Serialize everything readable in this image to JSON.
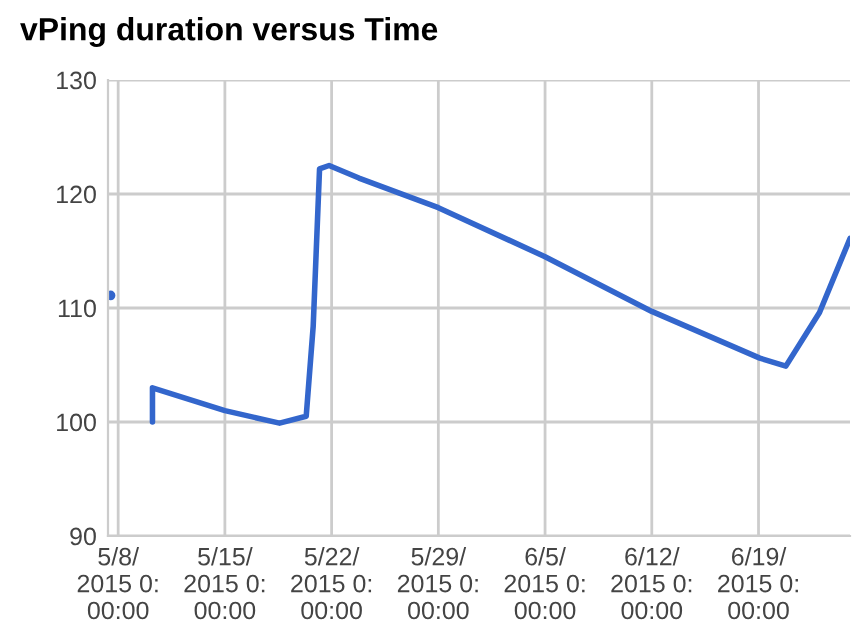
{
  "chart_data": {
    "type": "line",
    "title": "vPing duration versus Time",
    "x": [
      "2015-05-07T12:00",
      null,
      "2015-05-10T06:00",
      "2015-05-10T06:00",
      "2015-05-15",
      "2015-05-18T14:00",
      "2015-05-20T08:00",
      "2015-05-20T19:00",
      "2015-05-21T05:00",
      "2015-05-21T20:00",
      "2015-05-23T19:00",
      "2015-05-29",
      "2015-06-05",
      "2015-06-12",
      "2015-06-19T02:00",
      "2015-06-20T19:00",
      "2015-06-23",
      "2015-06-25"
    ],
    "series": [
      {
        "color": "#3366cc",
        "values": [
          111.1,
          null,
          100,
          103,
          101,
          99.9,
          100.5,
          108.4,
          122.2,
          122.5,
          121.4,
          118.8,
          114.5,
          109.7,
          105.6,
          104.9,
          109.6,
          116.1
        ]
      }
    ],
    "xlim": [
      "2015-05-07T08:00",
      "2015-06-25"
    ],
    "xticks": [
      {
        "value": "2015-05-08",
        "label": "5/8/\n2015 0:\n00:00"
      },
      {
        "value": "2015-05-15",
        "label": "5/15/\n2015 0:\n00:00"
      },
      {
        "value": "2015-05-22",
        "label": "5/22/\n2015 0:\n00:00"
      },
      {
        "value": "2015-05-29",
        "label": "5/29/\n2015 0:\n00:00"
      },
      {
        "value": "2015-06-05",
        "label": "6/5/\n2015 0:\n00:00"
      },
      {
        "value": "2015-06-12",
        "label": "6/12/\n2015 0:\n00:00"
      },
      {
        "value": "2015-06-19",
        "label": "6/19/\n2015 0:\n00:00"
      }
    ],
    "ylim": [
      90,
      130
    ],
    "yticks": [
      90,
      100,
      110,
      120,
      130
    ],
    "grid": true,
    "legend": false,
    "marker": "none",
    "line_style": "solid"
  }
}
